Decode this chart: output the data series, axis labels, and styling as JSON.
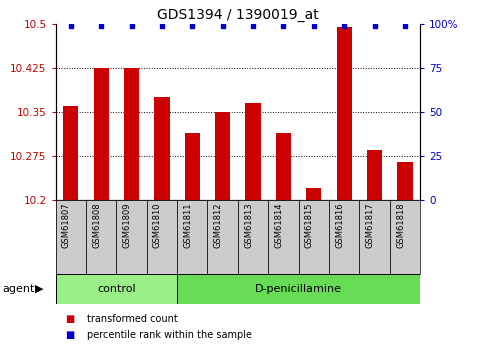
{
  "title": "GDS1394 / 1390019_at",
  "samples": [
    "GSM61807",
    "GSM61808",
    "GSM61809",
    "GSM61810",
    "GSM61811",
    "GSM61812",
    "GSM61813",
    "GSM61814",
    "GSM61815",
    "GSM61816",
    "GSM61817",
    "GSM61818"
  ],
  "bar_values": [
    10.36,
    10.425,
    10.425,
    10.375,
    10.315,
    10.35,
    10.365,
    10.315,
    10.22,
    10.495,
    10.285,
    10.265
  ],
  "percentile_values": [
    99,
    99,
    99,
    99,
    99,
    99,
    99,
    99,
    99,
    99,
    99,
    99
  ],
  "bar_color": "#cc0000",
  "dot_color": "#0000cc",
  "ymin": 10.2,
  "ymax": 10.5,
  "yticks_left": [
    10.2,
    10.275,
    10.35,
    10.425,
    10.5
  ],
  "ytick_labels_left": [
    "10.2",
    "10.275",
    "10.35",
    "10.425",
    "10.5"
  ],
  "yticks_right": [
    0,
    25,
    50,
    75,
    100
  ],
  "ytick_labels_right": [
    "0",
    "25",
    "50",
    "75",
    "100%"
  ],
  "grid_values": [
    10.275,
    10.35,
    10.425
  ],
  "control_label": "control",
  "treatment_label": "D-penicillamine",
  "n_control": 4,
  "n_treatment": 8,
  "agent_label": "agent",
  "legend_bar_label": "transformed count",
  "legend_dot_label": "percentile rank within the sample",
  "control_bg": "#99ee88",
  "treatment_bg": "#66dd55",
  "sample_bg": "#cccccc",
  "title_fontsize": 10,
  "tick_fontsize": 7.5,
  "label_fontsize": 8,
  "bar_width": 0.5
}
